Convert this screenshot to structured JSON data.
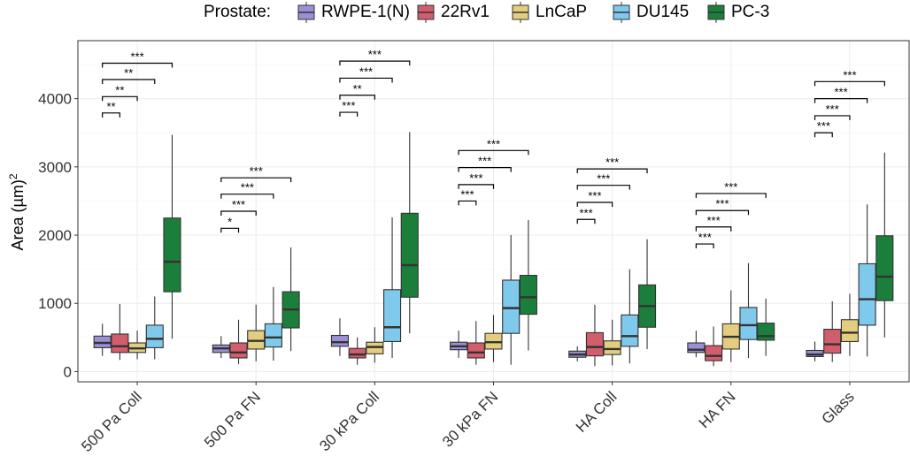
{
  "chart_data": {
    "type": "boxplot",
    "legend": {
      "title": "Prostate:",
      "position": "top"
    },
    "xlabel": "",
    "ylabel": "Area (µm)",
    "ylabel_sup": "2",
    "ylim": [
      -150,
      4850
    ],
    "yticks": [
      0,
      1000,
      2000,
      3000,
      4000
    ],
    "grid": true,
    "categories": [
      "500 Pa Coll",
      "500 Pa FN",
      "30 kPa Coll",
      "30 kPa FN",
      "HA Coll",
      "HA FN",
      "Glass"
    ],
    "series": [
      {
        "name": "RWPE-1(N)",
        "color": "#9C8FD6",
        "boxes": [
          {
            "min": 230,
            "q1": 350,
            "median": 420,
            "q3": 520,
            "max": 700
          },
          {
            "min": 200,
            "q1": 280,
            "median": 340,
            "q3": 390,
            "max": 520
          },
          {
            "min": 230,
            "q1": 370,
            "median": 430,
            "q3": 530,
            "max": 780
          },
          {
            "min": 200,
            "q1": 320,
            "median": 370,
            "q3": 430,
            "max": 600
          },
          {
            "min": 150,
            "q1": 210,
            "median": 250,
            "q3": 300,
            "max": 370
          },
          {
            "min": 210,
            "q1": 280,
            "median": 320,
            "q3": 420,
            "max": 600
          },
          {
            "min": 150,
            "q1": 220,
            "median": 250,
            "q3": 310,
            "max": 440
          }
        ]
      },
      {
        "name": "22Rv1",
        "color": "#D25D6C",
        "boxes": [
          {
            "min": 170,
            "q1": 280,
            "median": 370,
            "q3": 550,
            "max": 990
          },
          {
            "min": 110,
            "q1": 200,
            "median": 280,
            "q3": 420,
            "max": 760
          },
          {
            "min": 100,
            "q1": 200,
            "median": 250,
            "q3": 340,
            "max": 500
          },
          {
            "min": 100,
            "q1": 200,
            "median": 280,
            "q3": 420,
            "max": 740
          },
          {
            "min": 80,
            "q1": 230,
            "median": 360,
            "q3": 570,
            "max": 980
          },
          {
            "min": 80,
            "q1": 160,
            "median": 230,
            "q3": 380,
            "max": 660
          },
          {
            "min": 140,
            "q1": 270,
            "median": 400,
            "q3": 620,
            "max": 1030
          }
        ]
      },
      {
        "name": "LnCaP",
        "color": "#E2CE7E",
        "boxes": [
          {
            "min": 180,
            "q1": 280,
            "median": 340,
            "q3": 420,
            "max": 600
          },
          {
            "min": 150,
            "q1": 330,
            "median": 450,
            "q3": 600,
            "max": 980
          },
          {
            "min": 130,
            "q1": 260,
            "median": 360,
            "q3": 430,
            "max": 650
          },
          {
            "min": 140,
            "q1": 330,
            "median": 430,
            "q3": 560,
            "max": 830
          },
          {
            "min": 90,
            "q1": 250,
            "median": 330,
            "q3": 450,
            "max": 760
          },
          {
            "min": 140,
            "q1": 330,
            "median": 510,
            "q3": 700,
            "max": 1190
          },
          {
            "min": 230,
            "q1": 440,
            "median": 570,
            "q3": 760,
            "max": 1140
          }
        ]
      },
      {
        "name": "DU145",
        "color": "#7FC9EC",
        "boxes": [
          {
            "min": 180,
            "q1": 350,
            "median": 480,
            "q3": 680,
            "max": 1100
          },
          {
            "min": 160,
            "q1": 360,
            "median": 500,
            "q3": 700,
            "max": 1240
          },
          {
            "min": 200,
            "q1": 440,
            "median": 650,
            "q3": 1200,
            "max": 2260
          },
          {
            "min": 100,
            "q1": 560,
            "median": 930,
            "q3": 1340,
            "max": 2000
          },
          {
            "min": 120,
            "q1": 370,
            "median": 520,
            "q3": 830,
            "max": 1500
          },
          {
            "min": 200,
            "q1": 470,
            "median": 680,
            "q3": 940,
            "max": 1590
          },
          {
            "min": 220,
            "q1": 680,
            "median": 1060,
            "q3": 1580,
            "max": 2450
          }
        ]
      },
      {
        "name": "PC-3",
        "color": "#1B7F3B",
        "boxes": [
          {
            "min": 480,
            "q1": 1170,
            "median": 1610,
            "q3": 2250,
            "max": 3470
          },
          {
            "min": 300,
            "q1": 640,
            "median": 910,
            "q3": 1170,
            "max": 1820
          },
          {
            "min": 560,
            "q1": 1090,
            "median": 1560,
            "q3": 2320,
            "max": 3510
          },
          {
            "min": 310,
            "q1": 840,
            "median": 1090,
            "q3": 1410,
            "max": 2220
          },
          {
            "min": 330,
            "q1": 650,
            "median": 960,
            "q3": 1270,
            "max": 1940
          },
          {
            "min": 230,
            "q1": 460,
            "median": 520,
            "q3": 710,
            "max": 1070
          },
          {
            "min": 500,
            "q1": 1040,
            "median": 1390,
            "q3": 1990,
            "max": 3210
          }
        ]
      }
    ],
    "significance": [
      [
        {
          "compare": 1,
          "y": 3790,
          "label": "**"
        },
        {
          "compare": 2,
          "y": 4030,
          "label": "**"
        },
        {
          "compare": 3,
          "y": 4280,
          "label": "**"
        },
        {
          "compare": 4,
          "y": 4520,
          "label": "***"
        }
      ],
      [
        {
          "compare": 1,
          "y": 2100,
          "label": "*"
        },
        {
          "compare": 2,
          "y": 2350,
          "label": "***"
        },
        {
          "compare": 3,
          "y": 2600,
          "label": "***"
        },
        {
          "compare": 4,
          "y": 2840,
          "label": "***"
        }
      ],
      [
        {
          "compare": 1,
          "y": 3800,
          "label": "***"
        },
        {
          "compare": 2,
          "y": 4050,
          "label": "**"
        },
        {
          "compare": 3,
          "y": 4300,
          "label": "***"
        },
        {
          "compare": 4,
          "y": 4550,
          "label": "***"
        }
      ],
      [
        {
          "compare": 1,
          "y": 2500,
          "label": "***"
        },
        {
          "compare": 2,
          "y": 2740,
          "label": "***"
        },
        {
          "compare": 3,
          "y": 2990,
          "label": "***"
        },
        {
          "compare": 4,
          "y": 3240,
          "label": "***"
        }
      ],
      [
        {
          "compare": 1,
          "y": 2230,
          "label": "***"
        },
        {
          "compare": 2,
          "y": 2480,
          "label": "***"
        },
        {
          "compare": 3,
          "y": 2730,
          "label": "***"
        },
        {
          "compare": 4,
          "y": 2970,
          "label": "***"
        }
      ],
      [
        {
          "compare": 1,
          "y": 1870,
          "label": "***"
        },
        {
          "compare": 2,
          "y": 2120,
          "label": "***"
        },
        {
          "compare": 3,
          "y": 2360,
          "label": "***"
        },
        {
          "compare": 4,
          "y": 2610,
          "label": "***"
        }
      ],
      [
        {
          "compare": 1,
          "y": 3500,
          "label": "***"
        },
        {
          "compare": 2,
          "y": 3750,
          "label": "***"
        },
        {
          "compare": 3,
          "y": 4000,
          "label": "***"
        },
        {
          "compare": 4,
          "y": 4250,
          "label": "***"
        }
      ]
    ]
  }
}
